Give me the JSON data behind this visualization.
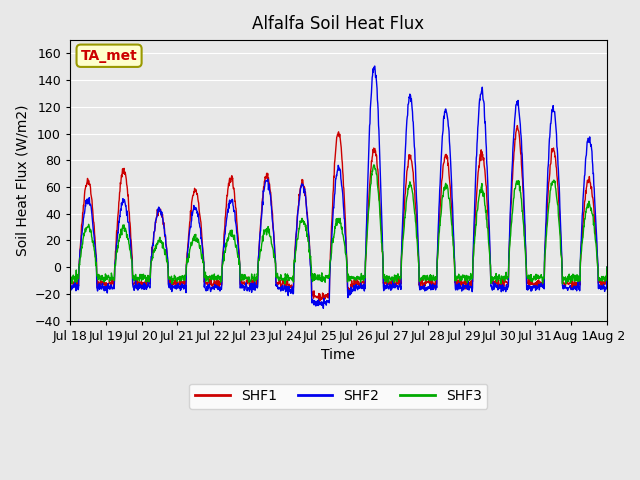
{
  "title": "Alfalfa Soil Heat Flux",
  "xlabel": "Time",
  "ylabel": "Soil Heat Flux (W/m2)",
  "ylim": [
    -40,
    170
  ],
  "yticks": [
    -40,
    -20,
    0,
    20,
    40,
    60,
    80,
    100,
    120,
    140,
    160
  ],
  "background_color": "#e8e8e8",
  "plot_bg_color": "#e8e8e8",
  "shf1_color": "#cc0000",
  "shf2_color": "#0000ee",
  "shf3_color": "#00aa00",
  "legend_labels": [
    "SHF1",
    "SHF2",
    "SHF3"
  ],
  "annotation_text": "TA_met",
  "annotation_color": "#cc0000",
  "annotation_bg": "#ffffcc",
  "x_tick_labels": [
    "Jul 18",
    "Jul 19",
    "Jul 20",
    "Jul 21",
    "Jul 22",
    "Jul 23",
    "Jul 24",
    "Jul 25",
    "Jul 26",
    "Jul 27",
    "Jul 28",
    "Jul 29",
    "Jul 30",
    "Jul 31",
    "Aug 1",
    "Aug 2"
  ],
  "n_days": 15,
  "pts_per_day": 96,
  "shf1_scales": [
    65,
    73,
    43,
    58,
    67,
    70,
    70,
    108,
    88,
    82,
    83,
    85,
    104,
    88,
    65
  ],
  "shf2_scales": [
    50,
    50,
    43,
    45,
    50,
    65,
    70,
    83,
    150,
    128,
    118,
    132,
    123,
    118,
    96
  ],
  "shf3_scales": [
    30,
    30,
    20,
    22,
    25,
    28,
    35,
    35,
    75,
    62,
    62,
    58,
    65,
    65,
    48
  ]
}
